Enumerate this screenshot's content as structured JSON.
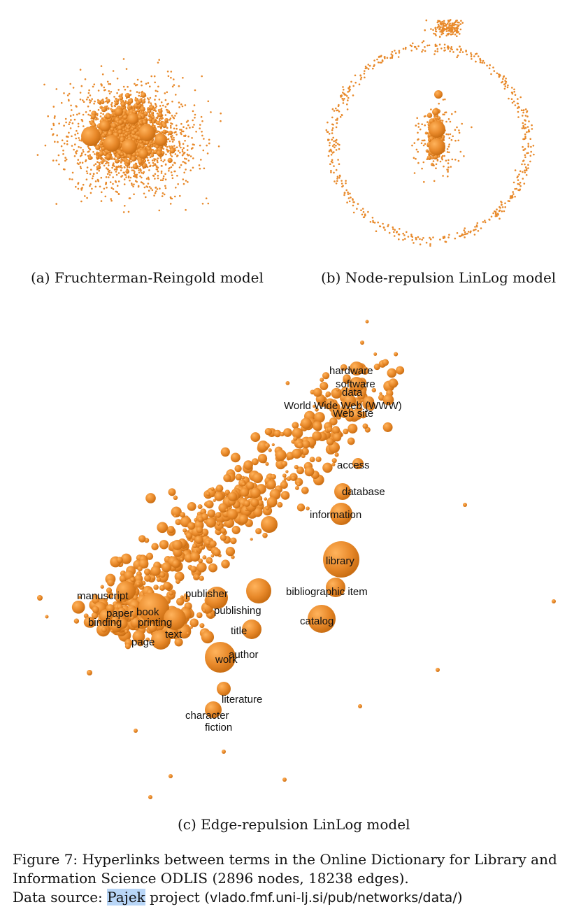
{
  "panels": {
    "a": {
      "caption": "(a) Fruchterman-Reingold model"
    },
    "b": {
      "caption": "(b) Node-repulsion LinLog model"
    },
    "c": {
      "caption": "(c) Edge-repulsion LinLog model",
      "labels": [
        "hardware",
        "software",
        "data",
        "World Wide Web (WWW)",
        "Web site",
        "access",
        "database",
        "information",
        "library",
        "bibliographic item",
        "manuscript",
        "publisher",
        "paper",
        "book",
        "publishing",
        "binding",
        "printing",
        "catalog",
        "text",
        "page",
        "title",
        "author",
        "work",
        "literature",
        "character",
        "fiction"
      ]
    }
  },
  "figure_caption": {
    "line1": "Figure 7: Hyperlinks between terms in the Online Dictionary for Library and",
    "line2": "Information Science ODLIS (2896 nodes, 18238 edges).",
    "source_prefix": "Data source: ",
    "source_link": "Pajek",
    "source_mid": " project (",
    "source_url": "vlado.fmf.uni-lj.si/pub/networks/data/",
    "source_suffix": ")"
  },
  "colors": {
    "node": "#e8892a",
    "node_dark": "#c96d12",
    "highlight": "#b9d6f7"
  }
}
